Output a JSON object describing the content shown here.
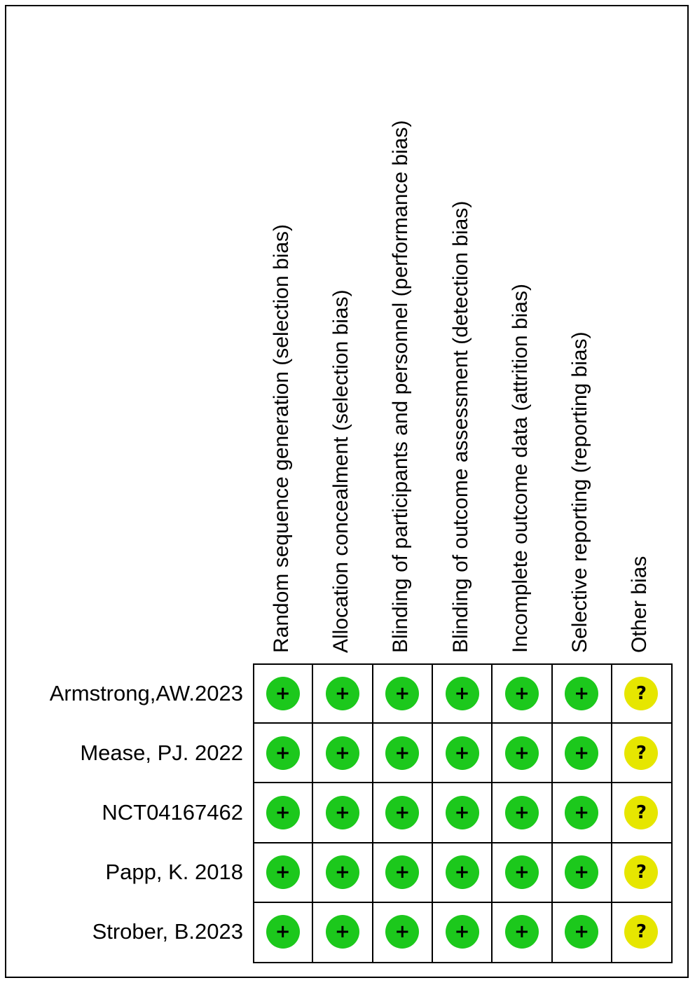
{
  "chart_data": {
    "type": "table",
    "columns": [
      "Random sequence generation (selection bias)",
      "Allocation concealment (selection bias)",
      "Blinding of participants and personnel (performance bias)",
      "Blinding of outcome assessment (detection bias)",
      "Incomplete outcome data (attrition bias)",
      "Selective reporting (reporting bias)",
      "Other bias"
    ],
    "rows": [
      "Armstrong,AW.2023",
      "Mease, PJ. 2022",
      "NCT04167462",
      "Papp, K. 2018",
      "Strober, B.2023"
    ],
    "values": [
      [
        "low",
        "low",
        "low",
        "low",
        "low",
        "low",
        "unclear"
      ],
      [
        "low",
        "low",
        "low",
        "low",
        "low",
        "low",
        "unclear"
      ],
      [
        "low",
        "low",
        "low",
        "low",
        "low",
        "low",
        "unclear"
      ],
      [
        "low",
        "low",
        "low",
        "low",
        "low",
        "low",
        "unclear"
      ],
      [
        "low",
        "low",
        "low",
        "low",
        "low",
        "low",
        "unclear"
      ]
    ],
    "legend": {
      "low": {
        "symbol": "+",
        "color": "#1cc81c"
      },
      "unclear": {
        "symbol": "?",
        "color": "#e6e600"
      }
    }
  }
}
